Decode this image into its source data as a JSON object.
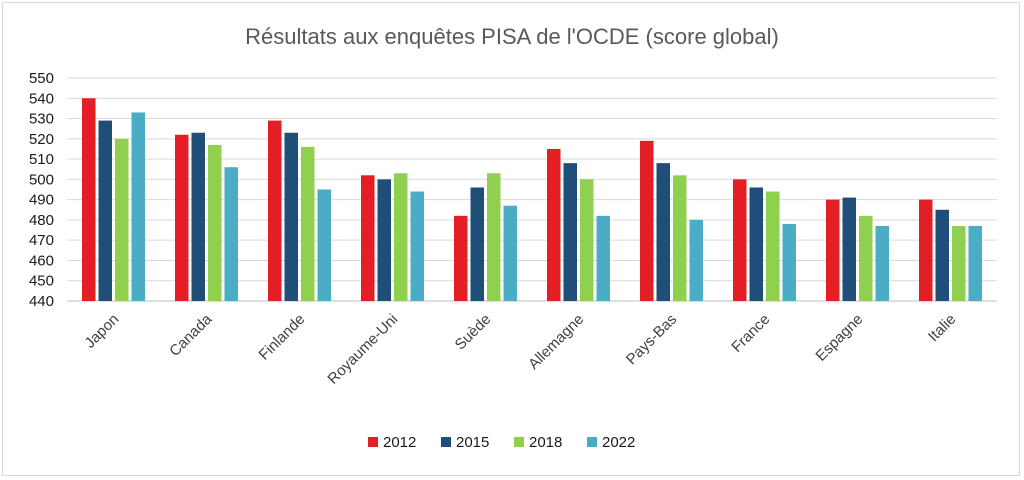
{
  "chart_data": {
    "type": "bar",
    "title": "Résultats aux enquêtes PISA de l'OCDE (score global)",
    "xlabel": "",
    "ylabel": "",
    "ylim": [
      440,
      550
    ],
    "yticks": [
      440,
      450,
      460,
      470,
      480,
      490,
      500,
      510,
      520,
      530,
      540,
      550
    ],
    "grid": true,
    "legend_position": "bottom",
    "categories": [
      "Japon",
      "Canada",
      "Finlande",
      "Royaume-Uni",
      "Suède",
      "Allemagne",
      "Pays-Bas",
      "France",
      "Espagne",
      "Italie"
    ],
    "series": [
      {
        "name": "2012",
        "color": "#e31e24",
        "values": [
          540,
          522,
          529,
          502,
          482,
          515,
          519,
          500,
          490,
          490
        ]
      },
      {
        "name": "2015",
        "color": "#1f4e79",
        "values": [
          529,
          523,
          523,
          500,
          496,
          508,
          508,
          496,
          491,
          485
        ]
      },
      {
        "name": "2018",
        "color": "#8fd14f",
        "values": [
          520,
          517,
          516,
          503,
          503,
          500,
          502,
          494,
          482,
          477
        ]
      },
      {
        "name": "2022",
        "color": "#4bacc6",
        "values": [
          533,
          506,
          495,
          494,
          487,
          482,
          480,
          478,
          477,
          477
        ]
      }
    ]
  }
}
